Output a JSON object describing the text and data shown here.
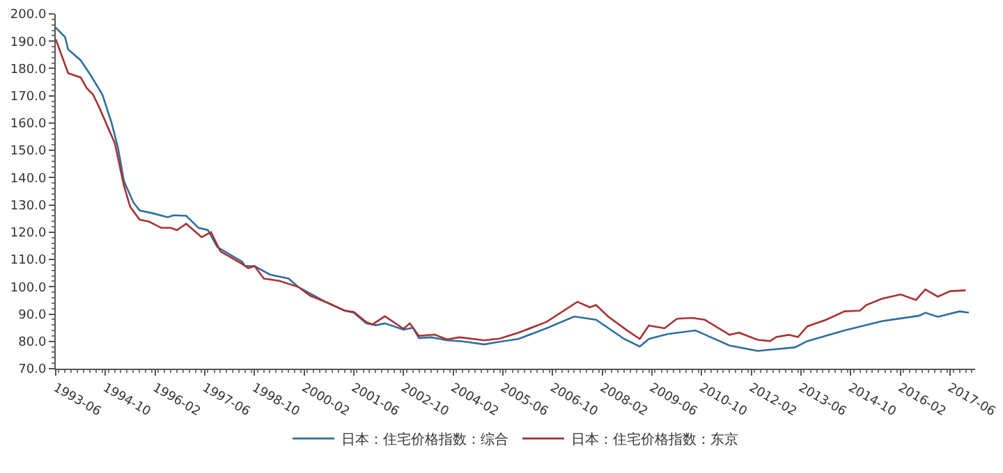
{
  "chart_data": {
    "type": "line",
    "legend": "bottom",
    "grid": false,
    "marker": "none",
    "line_style": "solid",
    "xlim": [
      "1993-06",
      "2018-02"
    ],
    "xticks": [
      "1993-06",
      "1994-10",
      "1996-02",
      "1997-06",
      "1998-10",
      "2000-02",
      "2001-06",
      "2002-10",
      "2004-02",
      "2005-06",
      "2006-10",
      "2008-02",
      "2009-06",
      "2010-10",
      "2012-02",
      "2013-06",
      "2014-10",
      "2016-02",
      "2017-06"
    ],
    "ylim": [
      70,
      200
    ],
    "yticks": [
      {
        "value": 70,
        "label": "70.0"
      },
      {
        "value": 80,
        "label": "80.0"
      },
      {
        "value": 90,
        "label": "90.0"
      },
      {
        "value": 100,
        "label": "100.0"
      },
      {
        "value": 110,
        "label": "110.0"
      },
      {
        "value": 120,
        "label": "120.0"
      },
      {
        "value": 130,
        "label": "130.0"
      },
      {
        "value": 140,
        "label": "140.0"
      },
      {
        "value": 150,
        "label": "150.0"
      },
      {
        "value": 160,
        "label": "160.0"
      },
      {
        "value": 170,
        "label": "170.0"
      },
      {
        "value": 180,
        "label": "180.0"
      },
      {
        "value": 190,
        "label": "190.0"
      },
      {
        "value": 200,
        "label": "200.0"
      }
    ],
    "series": [
      {
        "name": "日本：住宅价格指数：综合",
        "color": "#2e6e9e",
        "x": [
          "1993-06",
          "1993-09",
          "1993-10",
          "1994-02",
          "1994-05",
          "1994-09",
          "1994-12",
          "1995-02",
          "1995-04",
          "1995-07",
          "1995-09",
          "1996-01",
          "1996-06",
          "1996-08",
          "1996-12",
          "1997-04",
          "1997-07",
          "1997-10",
          "1998-06",
          "1998-07",
          "1998-10",
          "1999-03",
          "1999-09",
          "1999-12",
          "2000-04",
          "2000-09",
          "2001-03",
          "2001-06",
          "2001-10",
          "2002-01",
          "2002-04",
          "2002-10",
          "2003-01",
          "2003-03",
          "2003-07",
          "2003-12",
          "2004-05",
          "2004-12",
          "2005-04",
          "2005-11",
          "2006-08",
          "2007-05",
          "2007-12",
          "2008-09",
          "2009-02",
          "2009-05",
          "2009-11",
          "2010-08",
          "2011-07",
          "2012-04",
          "2013-04",
          "2013-08",
          "2014-08",
          "2015-08",
          "2016-08",
          "2016-10",
          "2017-02",
          "2017-09",
          "2017-12"
        ],
        "values": [
          195,
          191.5,
          187,
          183,
          178,
          170.5,
          160,
          151,
          138.7,
          131,
          128,
          127,
          125.5,
          126.2,
          126,
          121.6,
          120.8,
          114.6,
          109.2,
          107.6,
          107.6,
          104.5,
          103,
          100,
          97.5,
          94.4,
          91.3,
          90.5,
          86.6,
          85.9,
          86.6,
          84.3,
          85,
          81.2,
          81.5,
          80.4,
          80,
          78.9,
          79.7,
          80.9,
          84.8,
          89.1,
          87.9,
          80.9,
          78.1,
          80.9,
          82.7,
          84,
          78.5,
          76.5,
          77.8,
          80.1,
          84,
          87.4,
          89.4,
          90.5,
          89,
          91,
          90.5
        ]
      },
      {
        "name": "日本：住宅价格指数：东京",
        "color": "#a83232",
        "x": [
          "1993-06",
          "1993-10",
          "1994-02",
          "1994-04",
          "1994-06",
          "1994-08",
          "1995-01",
          "1995-04",
          "1995-06",
          "1995-09",
          "1995-12",
          "1996-04",
          "1996-07",
          "1996-09",
          "1996-12",
          "1997-05",
          "1997-08",
          "1997-11",
          "1998-06",
          "1998-08",
          "1998-10",
          "1999-01",
          "1999-06",
          "1999-12",
          "2000-04",
          "2000-09",
          "2001-03",
          "2001-06",
          "2001-10",
          "2001-12",
          "2002-04",
          "2002-10",
          "2002-12",
          "2003-03",
          "2003-08",
          "2003-12",
          "2004-04",
          "2004-12",
          "2005-05",
          "2005-11",
          "2006-08",
          "2007-06",
          "2007-10",
          "2007-12",
          "2008-04",
          "2008-10",
          "2009-02",
          "2009-05",
          "2009-10",
          "2010-02",
          "2010-07",
          "2010-11",
          "2011-07",
          "2011-10",
          "2012-04",
          "2012-08",
          "2012-10",
          "2013-02",
          "2013-05",
          "2013-08",
          "2014-02",
          "2014-08",
          "2015-01",
          "2015-03",
          "2015-08",
          "2016-02",
          "2016-07",
          "2016-10",
          "2017-02",
          "2017-06",
          "2017-11"
        ],
        "values": [
          190.7,
          178.3,
          176.7,
          172.8,
          170.5,
          165.8,
          152.6,
          137,
          129.3,
          124.6,
          123.9,
          121.6,
          121.6,
          120.8,
          123.1,
          118.2,
          120,
          113,
          108.4,
          106.8,
          107.6,
          103,
          102.2,
          100,
          96.7,
          94.4,
          91.3,
          90.8,
          87.1,
          86.2,
          89.2,
          84.6,
          86.6,
          82,
          82.5,
          80.7,
          81.5,
          80.4,
          81,
          83.2,
          87.1,
          94.5,
          92.5,
          93.3,
          89,
          84,
          80.9,
          85.8,
          84.8,
          88.3,
          88.6,
          87.9,
          82.4,
          83.2,
          80.6,
          80.1,
          81.6,
          82.4,
          81.6,
          85.5,
          87.9,
          91,
          91.3,
          93.3,
          95.6,
          97.2,
          95.2,
          99,
          96.4,
          98.4,
          98.7
        ]
      }
    ]
  }
}
